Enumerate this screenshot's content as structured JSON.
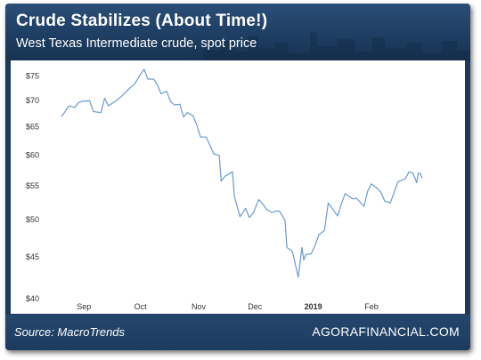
{
  "header": {
    "title": "Crude Stabilizes (About Time!)",
    "subtitle": "West Texas Intermediate crude, spot price"
  },
  "footer": {
    "source": "Source: MacroTrends",
    "brand": "AGORAFINANCIAL.COM"
  },
  "colors": {
    "line": "#6a9bd2",
    "background": "#1d3a5c",
    "text": "#ffffff"
  },
  "chart_data": {
    "type": "line",
    "title": "Crude Stabilizes (About Time!)",
    "subtitle": "West Texas Intermediate crude, spot price",
    "xlabel": "",
    "ylabel": "",
    "log_scale_y": true,
    "grid": false,
    "ylim": [
      40,
      76
    ],
    "xlim": [
      "2018-08-20",
      "2019-02-28"
    ],
    "y_ticks": [
      {
        "value": 40,
        "label": "$40"
      },
      {
        "value": 45,
        "label": "$45"
      },
      {
        "value": 50,
        "label": "$50"
      },
      {
        "value": 55,
        "label": "$55"
      },
      {
        "value": 60,
        "label": "$60"
      },
      {
        "value": 65,
        "label": "$65"
      },
      {
        "value": 70,
        "label": "$70"
      },
      {
        "value": 75,
        "label": "$75"
      }
    ],
    "x_ticks": [
      {
        "date": "2018-09-01",
        "label": "Sep",
        "bold": false
      },
      {
        "date": "2018-10-01",
        "label": "Oct",
        "bold": false
      },
      {
        "date": "2018-11-01",
        "label": "Nov",
        "bold": false
      },
      {
        "date": "2018-12-01",
        "label": "Dec",
        "bold": false
      },
      {
        "date": "2019-01-01",
        "label": "2019",
        "bold": true
      },
      {
        "date": "2019-02-01",
        "label": "Feb",
        "bold": false
      }
    ],
    "series": [
      {
        "values": [
          {
            "x": "2018-08-20",
            "y": 66.9
          },
          {
            "x": "2018-08-22",
            "y": 67.8
          },
          {
            "x": "2018-08-24",
            "y": 68.9
          },
          {
            "x": "2018-08-27",
            "y": 68.6
          },
          {
            "x": "2018-08-29",
            "y": 69.5
          },
          {
            "x": "2018-08-31",
            "y": 69.8
          },
          {
            "x": "2018-09-04",
            "y": 69.9
          },
          {
            "x": "2018-09-06",
            "y": 67.8
          },
          {
            "x": "2018-09-10",
            "y": 67.6
          },
          {
            "x": "2018-09-12",
            "y": 70.4
          },
          {
            "x": "2018-09-14",
            "y": 68.9
          },
          {
            "x": "2018-09-18",
            "y": 69.9
          },
          {
            "x": "2018-09-21",
            "y": 70.8
          },
          {
            "x": "2018-09-25",
            "y": 72.3
          },
          {
            "x": "2018-09-28",
            "y": 73.3
          },
          {
            "x": "2018-10-01",
            "y": 75.3
          },
          {
            "x": "2018-10-03",
            "y": 76.4
          },
          {
            "x": "2018-10-05",
            "y": 74.3
          },
          {
            "x": "2018-10-08",
            "y": 74.3
          },
          {
            "x": "2018-10-10",
            "y": 73.2
          },
          {
            "x": "2018-10-12",
            "y": 71.3
          },
          {
            "x": "2018-10-15",
            "y": 71.8
          },
          {
            "x": "2018-10-17",
            "y": 69.8
          },
          {
            "x": "2018-10-19",
            "y": 69.1
          },
          {
            "x": "2018-10-22",
            "y": 69.2
          },
          {
            "x": "2018-10-24",
            "y": 66.8
          },
          {
            "x": "2018-10-26",
            "y": 67.6
          },
          {
            "x": "2018-10-29",
            "y": 67.0
          },
          {
            "x": "2018-10-31",
            "y": 65.3
          },
          {
            "x": "2018-11-02",
            "y": 63.1
          },
          {
            "x": "2018-11-05",
            "y": 63.1
          },
          {
            "x": "2018-11-07",
            "y": 61.7
          },
          {
            "x": "2018-11-09",
            "y": 60.2
          },
          {
            "x": "2018-11-12",
            "y": 59.9
          },
          {
            "x": "2018-11-13",
            "y": 55.7
          },
          {
            "x": "2018-11-15",
            "y": 56.5
          },
          {
            "x": "2018-11-19",
            "y": 57.2
          },
          {
            "x": "2018-11-20",
            "y": 53.4
          },
          {
            "x": "2018-11-23",
            "y": 50.4
          },
          {
            "x": "2018-11-26",
            "y": 51.6
          },
          {
            "x": "2018-11-28",
            "y": 50.3
          },
          {
            "x": "2018-11-30",
            "y": 50.9
          },
          {
            "x": "2018-12-03",
            "y": 52.9
          },
          {
            "x": "2018-12-05",
            "y": 52.3
          },
          {
            "x": "2018-12-07",
            "y": 51.5
          },
          {
            "x": "2018-12-10",
            "y": 51.0
          },
          {
            "x": "2018-12-12",
            "y": 51.2
          },
          {
            "x": "2018-12-14",
            "y": 51.2
          },
          {
            "x": "2018-12-17",
            "y": 49.9
          },
          {
            "x": "2018-12-18",
            "y": 46.2
          },
          {
            "x": "2018-12-20",
            "y": 45.9
          },
          {
            "x": "2018-12-21",
            "y": 45.6
          },
          {
            "x": "2018-12-24",
            "y": 42.5
          },
          {
            "x": "2018-12-26",
            "y": 46.2
          },
          {
            "x": "2018-12-27",
            "y": 44.6
          },
          {
            "x": "2018-12-28",
            "y": 45.3
          },
          {
            "x": "2018-12-31",
            "y": 45.4
          },
          {
            "x": "2019-01-02",
            "y": 46.5
          },
          {
            "x": "2019-01-04",
            "y": 47.9
          },
          {
            "x": "2019-01-07",
            "y": 48.5
          },
          {
            "x": "2019-01-09",
            "y": 52.4
          },
          {
            "x": "2019-01-11",
            "y": 51.6
          },
          {
            "x": "2019-01-14",
            "y": 50.5
          },
          {
            "x": "2019-01-16",
            "y": 52.3
          },
          {
            "x": "2019-01-18",
            "y": 53.8
          },
          {
            "x": "2019-01-22",
            "y": 53.0
          },
          {
            "x": "2019-01-24",
            "y": 53.1
          },
          {
            "x": "2019-01-28",
            "y": 51.9
          },
          {
            "x": "2019-01-30",
            "y": 54.2
          },
          {
            "x": "2019-02-01",
            "y": 55.3
          },
          {
            "x": "2019-02-04",
            "y": 54.6
          },
          {
            "x": "2019-02-06",
            "y": 54.0
          },
          {
            "x": "2019-02-08",
            "y": 52.7
          },
          {
            "x": "2019-02-11",
            "y": 52.4
          },
          {
            "x": "2019-02-13",
            "y": 53.9
          },
          {
            "x": "2019-02-15",
            "y": 55.6
          },
          {
            "x": "2019-02-19",
            "y": 56.1
          },
          {
            "x": "2019-02-21",
            "y": 57.2
          },
          {
            "x": "2019-02-23",
            "y": 57.0
          },
          {
            "x": "2019-02-25",
            "y": 55.5
          },
          {
            "x": "2019-02-26",
            "y": 57.0
          },
          {
            "x": "2019-02-27",
            "y": 56.9
          },
          {
            "x": "2019-02-28",
            "y": 56.2
          }
        ]
      }
    ]
  }
}
